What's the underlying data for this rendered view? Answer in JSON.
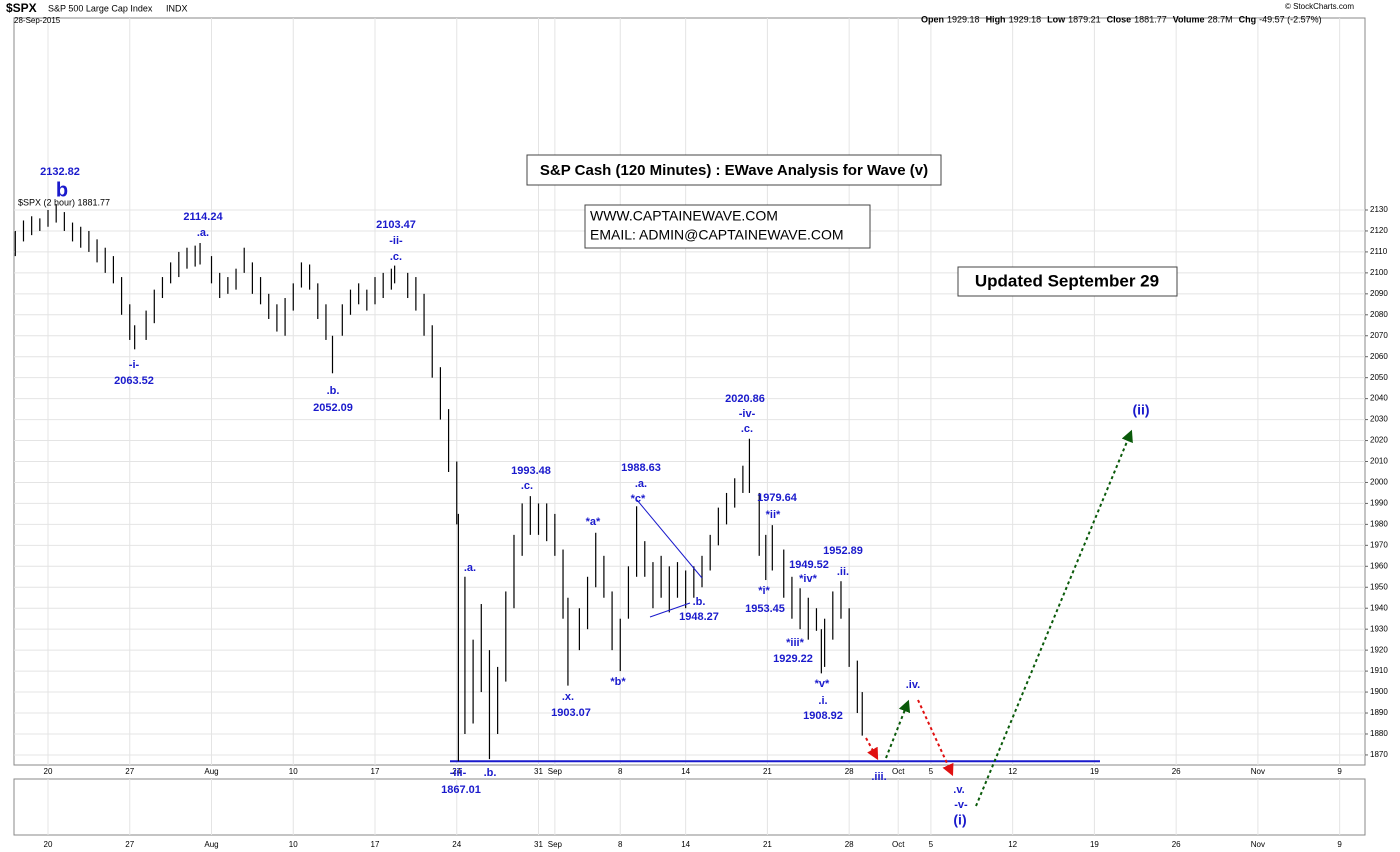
{
  "header": {
    "symbol": "$SPX",
    "name": "S&P 500 Large Cap Index",
    "exchange": "INDX",
    "date": "28-Sep-2015",
    "quote": [
      {
        "label": "Open",
        "value": "1929.18"
      },
      {
        "label": "High",
        "value": "1929.18"
      },
      {
        "label": "Low",
        "value": "1879.21"
      },
      {
        "label": "Close",
        "value": "1881.77"
      },
      {
        "label": "Volume",
        "value": "28.7M"
      },
      {
        "label": "Chg",
        "value": "-49.57 (-2.57%)"
      }
    ],
    "credit": "© StockCharts.com"
  },
  "chart_data": {
    "type": "hlc_bar",
    "title": "S&P Cash (120 Minutes) : EWave Analysis for Wave (v)",
    "website": "WWW.CAPTAINEWAVE.COM",
    "email": "EMAIL: ADMIN@CAPTAINEWAVE.COM",
    "updated": "Updated September 29",
    "series_label": "$SPX (2 hour) 1881.77",
    "color": "#000000",
    "annotation_color": "#1a1acc",
    "grid": true,
    "xlim": [
      -2.08,
      80.55
    ],
    "ylim": [
      1865.2,
      2221.6
    ],
    "xticks": [
      {
        "value": 0,
        "label": "20"
      },
      {
        "value": 5,
        "label": "27"
      },
      {
        "value": 10,
        "label": "Aug"
      },
      {
        "value": 15,
        "label": "10"
      },
      {
        "value": 20,
        "label": "17"
      },
      {
        "value": 25,
        "label": "24"
      },
      {
        "value": 30,
        "label": "31"
      },
      {
        "value": 31,
        "label": "Sep"
      },
      {
        "value": 35,
        "label": "8"
      },
      {
        "value": 39,
        "label": "14"
      },
      {
        "value": 44,
        "label": "21"
      },
      {
        "value": 49,
        "label": "28"
      },
      {
        "value": 52,
        "label": "Oct"
      },
      {
        "value": 54,
        "label": "5"
      },
      {
        "value": 59,
        "label": "12"
      },
      {
        "value": 64,
        "label": "19"
      },
      {
        "value": 69,
        "label": "26"
      },
      {
        "value": 74,
        "label": "Nov"
      },
      {
        "value": 79,
        "label": "9"
      }
    ],
    "yticks": [
      1870,
      1880,
      1890,
      1900,
      1910,
      1920,
      1930,
      1940,
      1950,
      1960,
      1970,
      1980,
      1990,
      2000,
      2010,
      2020,
      2030,
      2040,
      2050,
      2060,
      2070,
      2080,
      2090,
      2100,
      2110,
      2120,
      2130
    ],
    "support_level": 1867.01,
    "x": [
      -2,
      -1.5,
      -1,
      -0.5,
      0,
      0.5,
      1,
      1.5,
      2,
      2.5,
      3,
      3.5,
      4,
      4.5,
      5,
      5.3,
      6,
      6.5,
      7,
      7.5,
      8,
      8.5,
      9,
      9.3,
      10,
      10.5,
      11,
      11.5,
      12,
      12.5,
      13,
      13.5,
      14,
      14.5,
      15,
      15.5,
      16,
      16.5,
      17,
      17.4,
      18,
      18.5,
      19,
      19.5,
      20,
      20.5,
      21,
      21.2,
      22,
      22.5,
      23,
      23.5,
      24,
      24.5,
      25,
      25.1,
      25.5,
      26,
      26.5,
      27,
      27.5,
      28,
      28.5,
      29,
      29.5,
      30,
      30.5,
      31,
      31.5,
      31.8,
      32.5,
      33,
      33.5,
      34,
      34.5,
      35,
      35.5,
      36,
      36.5,
      37,
      37.5,
      38,
      38.5,
      39,
      39.5,
      40,
      40.5,
      41,
      41.5,
      42,
      42.5,
      42.9,
      43.5,
      43.9,
      44.3,
      45,
      45.5,
      46,
      46.5,
      47,
      47.3,
      47.5,
      48,
      48.5,
      49,
      49.5,
      49.8
    ],
    "high": [
      2120,
      2125,
      2127,
      2126,
      2130,
      2132.82,
      2129,
      2124,
      2122,
      2120,
      2116,
      2112,
      2108,
      2098,
      2085,
      2075,
      2082,
      2092,
      2098,
      2105,
      2110,
      2112,
      2113,
      2114.24,
      2108,
      2100,
      2098,
      2102,
      2112,
      2105,
      2098,
      2090,
      2085,
      2088,
      2095,
      2105,
      2104,
      2095,
      2085,
      2070,
      2085,
      2092,
      2095,
      2092,
      2098,
      2100,
      2102,
      2103.47,
      2100,
      2098,
      2090,
      2075,
      2055,
      2035,
      2010,
      1985,
      1955,
      1925,
      1942,
      1920,
      1912,
      1948,
      1975,
      1990,
      1993.48,
      1990,
      1990,
      1985,
      1968,
      1945,
      1940,
      1955,
      1976,
      1965,
      1948,
      1935,
      1960,
      1988.63,
      1972,
      1962,
      1965,
      1960,
      1962,
      1958,
      1960,
      1965,
      1975,
      1988,
      1995,
      2002,
      2008,
      2020.86,
      1995,
      1975,
      1979.64,
      1968,
      1955,
      1949.52,
      1945,
      1940,
      1930,
      1935,
      1948,
      1952.89,
      1940,
      1915,
      1900
    ],
    "low": [
      2108,
      2115,
      2118,
      2120,
      2122,
      2124,
      2120,
      2115,
      2112,
      2110,
      2105,
      2100,
      2095,
      2080,
      2068,
      2063.52,
      2068,
      2076,
      2088,
      2095,
      2098,
      2102,
      2103,
      2104,
      2095,
      2088,
      2090,
      2092,
      2100,
      2090,
      2085,
      2078,
      2072,
      2070,
      2082,
      2093,
      2092,
      2078,
      2068,
      2052.09,
      2070,
      2080,
      2085,
      2082,
      2085,
      2088,
      2092,
      2095,
      2088,
      2082,
      2070,
      2050,
      2030,
      2005,
      1980,
      1867.01,
      1880,
      1885,
      1900,
      1868,
      1880,
      1905,
      1940,
      1965,
      1975,
      1975,
      1972,
      1965,
      1935,
      1903.07,
      1920,
      1930,
      1950,
      1945,
      1920,
      1910,
      1935,
      1955,
      1955,
      1940,
      1945,
      1938,
      1945,
      1940,
      1945,
      1950,
      1958,
      1970,
      1980,
      1988,
      1995,
      1995,
      1965,
      1953.45,
      1958,
      1945,
      1935,
      1930,
      1925,
      1929.22,
      1908.92,
      1912,
      1925,
      1935,
      1912,
      1890,
      1879.21
    ],
    "annotations": [
      "2132.82",
      "b",
      "2114.24",
      ".a.",
      "2103.47",
      "-ii-",
      ".c.",
      "-i-",
      "2063.52",
      ".b.",
      "2052.09",
      "1993.48",
      ".c.",
      "1988.63",
      ".a.",
      "*c*",
      "*a*",
      "2020.86",
      "-iv-",
      ".c.",
      "1979.64",
      "*ii*",
      "1952.89",
      ".ii.",
      "1949.52",
      "*iv*",
      "*i*",
      "1953.45",
      ".b.",
      "1948.27",
      "*iii*",
      "1929.22",
      ".a.",
      ".x.",
      "1903.07",
      "*b*",
      "*v*",
      ".i.",
      "1908.92",
      ".iv.",
      "-iii-",
      ".b.",
      "1867.01",
      ".iii.",
      ".v.",
      "-v-",
      "(i)",
      "(ii)"
    ]
  }
}
